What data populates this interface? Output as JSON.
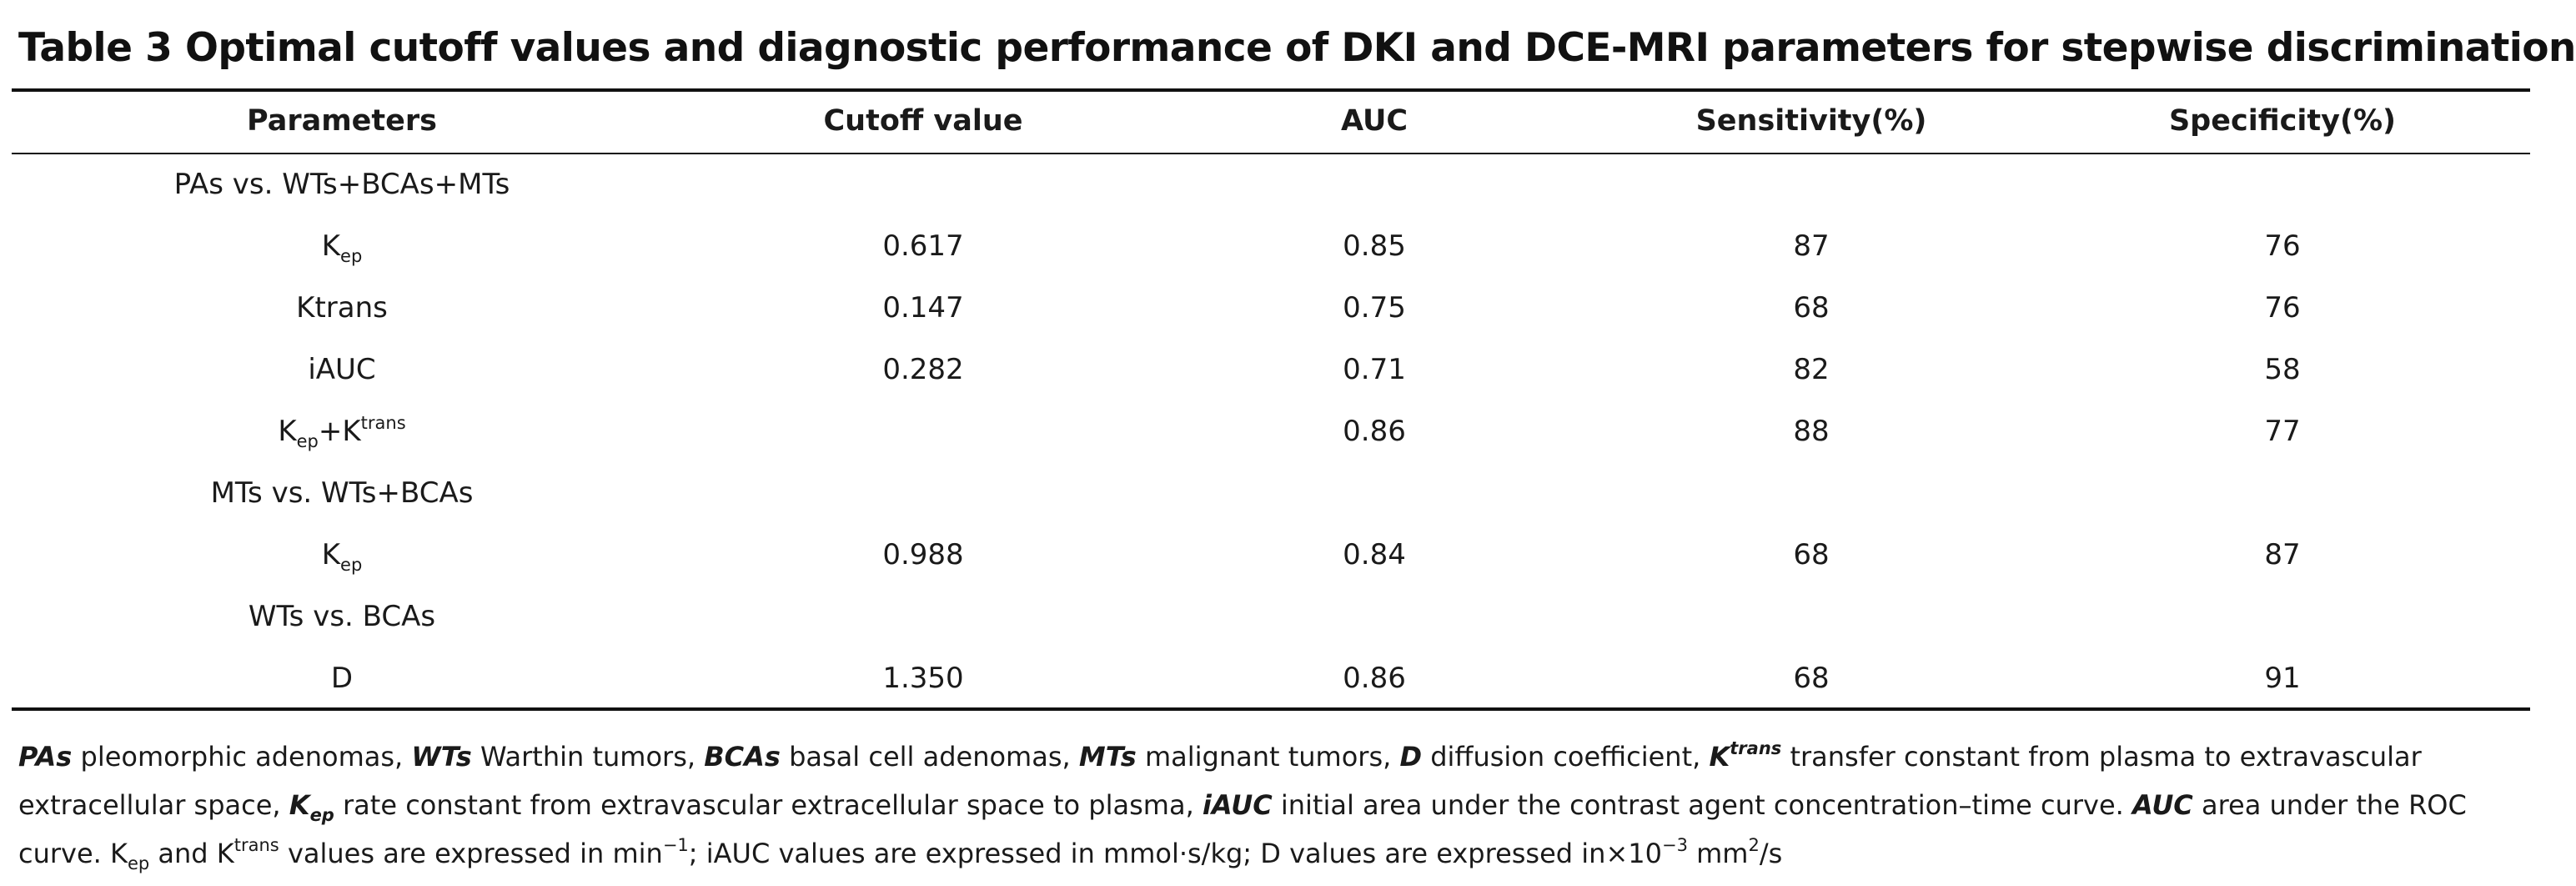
{
  "title": "Table 3 Optimal cutoff values and diagnostic performance of DKI and DCE-MRI parameters for stepwise discrimination",
  "headers": {
    "parameters": "Parameters",
    "cutoff": "Cutoff value",
    "auc": "AUC",
    "sensitivity": "Sensitivity(%)",
    "specificity": "Specificity(%)"
  },
  "sections": [
    {
      "label": "PAs vs. WTs+BCAs+MTs",
      "rows": [
        {
          "param_main": "K",
          "param_sub": "ep",
          "param_rest": "",
          "param_sup": "",
          "cutoff": "0.617",
          "auc": "0.85",
          "sensitivity": "87",
          "specificity": "76"
        },
        {
          "param_main": "Ktrans",
          "param_sub": "",
          "param_rest": "",
          "param_sup": "",
          "cutoff": "0.147",
          "auc": "0.75",
          "sensitivity": "68",
          "specificity": "76"
        },
        {
          "param_main": "iAUC",
          "param_sub": "",
          "param_rest": "",
          "param_sup": "",
          "cutoff": "0.282",
          "auc": "0.71",
          "sensitivity": "82",
          "specificity": "58"
        },
        {
          "param_main": "K",
          "param_sub": "ep",
          "param_rest": "+K",
          "param_sup": "trans",
          "cutoff": "",
          "auc": "0.86",
          "sensitivity": "88",
          "specificity": "77"
        }
      ]
    },
    {
      "label": "MTs vs. WTs+BCAs",
      "rows": [
        {
          "param_main": "K",
          "param_sub": "ep",
          "param_rest": "",
          "param_sup": "",
          "cutoff": "0.988",
          "auc": "0.84",
          "sensitivity": "68",
          "specificity": "87"
        }
      ]
    },
    {
      "label": "WTs vs. BCAs",
      "rows": [
        {
          "param_main": "D",
          "param_sub": "",
          "param_rest": "",
          "param_sup": "",
          "cutoff": "1.350",
          "auc": "0.86",
          "sensitivity": "68",
          "specificity": "91"
        }
      ]
    }
  ],
  "footnote": {
    "pas_abbr": "PAs",
    "pas_def": " pleomorphic adenomas, ",
    "wts_abbr": "WTs",
    "wts_def": " Warthin tumors, ",
    "bcas_abbr": "BCAs",
    "bcas_def": " basal cell adenomas, ",
    "mts_abbr": "MTs",
    "mts_def": " malignant tumors, ",
    "d_abbr": "D",
    "d_def": " diffusion coefficient, ",
    "ktrans_abbr": "K",
    "ktrans_abbr_sup": "trans",
    "ktrans_def": " transfer constant from plasma to extravascular extracellular space, ",
    "kep_abbr": "K",
    "kep_abbr_sub": "ep",
    "kep_def": " rate constant from extravascular extracellular space to plasma, ",
    "iauc_abbr": "iAUC",
    "iauc_def": " initial area under the contrast agent concentration–time curve. ",
    "auc_abbr": "AUC",
    "auc_def": " area under the ROC curve. ",
    "units_kep_main": "K",
    "units_kep_sub": "ep",
    "units_and": " and K",
    "units_trans_sup": "trans",
    "units_min_text": " values are expressed in min",
    "units_min_sup": "−1",
    "units_iauc_text": "; iAUC values are expressed in mmol·s/kg; D values are expressed in×10",
    "units_exp_sup": "−3",
    "units_mm_text": " mm",
    "units_mm_sup": "2",
    "units_end": "/s"
  }
}
